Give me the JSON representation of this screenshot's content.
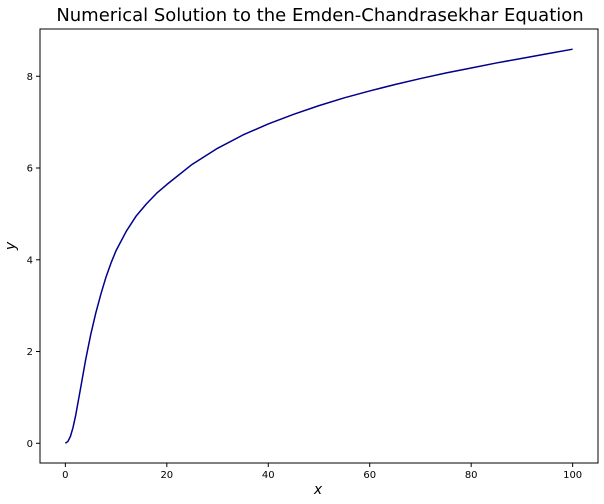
{
  "chart_data": {
    "type": "line",
    "title": "Numerical Solution to the Emden-Chandrasekhar Equation",
    "xlabel": "x",
    "ylabel": "y",
    "xlim": [
      -5,
      105
    ],
    "ylim": [
      -0.43,
      9.03
    ],
    "x_ticks": [
      0,
      20,
      40,
      60,
      80,
      100
    ],
    "x_tick_labels": [
      "0",
      "20",
      "40",
      "60",
      "80",
      "100"
    ],
    "y_ticks": [
      0,
      2,
      4,
      6,
      8
    ],
    "y_tick_labels": [
      "0",
      "2",
      "4",
      "6",
      "8"
    ],
    "grid": false,
    "line_color": "#00008b",
    "series": [
      {
        "x": [
          0,
          0.5,
          1,
          1.5,
          2,
          3,
          4,
          5,
          6,
          7,
          8,
          9,
          10,
          12,
          14,
          16,
          18,
          20,
          25,
          30,
          35,
          40,
          45,
          50,
          55,
          60,
          65,
          70,
          75,
          80,
          85,
          90,
          95,
          100
        ],
        "values": [
          0,
          0.04,
          0.15,
          0.34,
          0.59,
          1.2,
          1.82,
          2.37,
          2.84,
          3.25,
          3.62,
          3.93,
          4.2,
          4.62,
          4.96,
          5.22,
          5.45,
          5.64,
          6.08,
          6.43,
          6.72,
          6.96,
          7.17,
          7.36,
          7.53,
          7.68,
          7.82,
          7.95,
          8.07,
          8.18,
          8.29,
          8.39,
          8.49,
          8.59
        ]
      }
    ]
  }
}
